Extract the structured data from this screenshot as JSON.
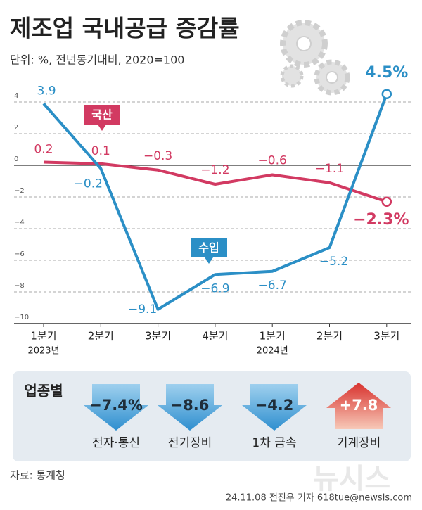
{
  "chart_data": {
    "type": "line",
    "title": "제조업 국내공급 증감률",
    "subtitle": "단위: %, 전년동기대비, 2020=100",
    "categories": [
      "1분기",
      "2분기",
      "3분기",
      "4분기",
      "1분기",
      "2분기",
      "3분기"
    ],
    "years": [
      "2023년",
      null,
      null,
      null,
      "2024년",
      null,
      null
    ],
    "ylim": [
      -10,
      5.5
    ],
    "yticks": [
      {
        "value": -10,
        "label": "−10"
      },
      {
        "value": -8,
        "label": "−8"
      },
      {
        "value": -6,
        "label": "−6"
      },
      {
        "value": -4,
        "label": "−4"
      },
      {
        "value": -2,
        "label": "−2"
      },
      0,
      2,
      4
    ],
    "grid": true,
    "series": [
      {
        "name": "국산",
        "color": "#d23a62",
        "values": [
          0.2,
          0.1,
          -0.3,
          -1.2,
          -0.6,
          -1.1,
          -2.3
        ],
        "value_labels": [
          "0.2",
          "0.1",
          "−0.3",
          "−1.2",
          "−0.6",
          "−1.1",
          "−2.3%"
        ]
      },
      {
        "name": "수입",
        "color": "#2b8fc6",
        "values": [
          3.9,
          -0.2,
          -9.1,
          -6.9,
          -6.7,
          -5.2,
          4.5
        ],
        "value_labels": [
          "3.9",
          "−0.2",
          "−9.1",
          "−6.9",
          "−6.7",
          "−5.2",
          "4.5%"
        ]
      }
    ],
    "industries": {
      "title": "업종별",
      "items": [
        {
          "name": "전자·통신",
          "value": -7.4,
          "value_label": "−7.4%"
        },
        {
          "name": "전기장비",
          "value": -8.6,
          "value_label": "−8.6"
        },
        {
          "name": "1차 금속",
          "value": -4.2,
          "value_label": "−4.2"
        },
        {
          "name": "기계장비",
          "value": 7.8,
          "value_label": "+7.8"
        }
      ]
    },
    "source": "자료: 통계청",
    "credit": "24.11.08 전진우 기자 618tue@newsis.com",
    "watermark": "뉴시스"
  }
}
